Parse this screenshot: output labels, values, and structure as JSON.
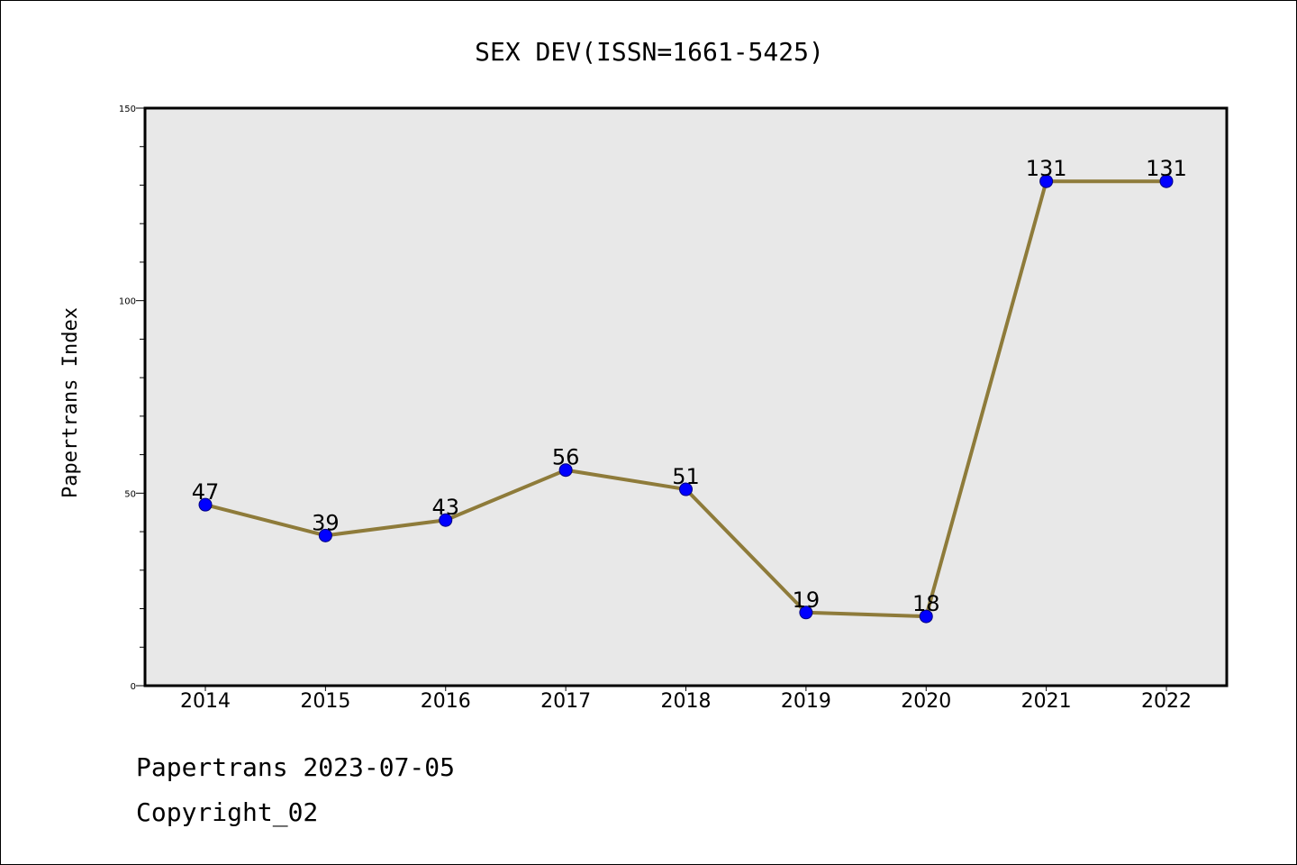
{
  "chart_data": {
    "type": "line",
    "title": "SEX DEV(ISSN=1661-5425)",
    "ylabel": "Papertrans Index",
    "xlabel": "",
    "x": [
      "2014",
      "2015",
      "2016",
      "2017",
      "2018",
      "2019",
      "2020",
      "2021",
      "2022"
    ],
    "series": [
      {
        "values": [
          47,
          39,
          43,
          56,
          51,
          19,
          18,
          131,
          131
        ]
      }
    ],
    "data_labels": [
      "47",
      "39",
      "43",
      "56",
      "51",
      "19",
      "18",
      "131",
      "131"
    ],
    "ylim": [
      0,
      150
    ],
    "yticks": [
      0,
      50,
      100,
      150
    ],
    "ytick_labels": [
      "0",
      "50",
      "100",
      "150"
    ],
    "grid": false,
    "legend": "none",
    "colors": {
      "line": "#8e7b3a",
      "marker": "#0000ff",
      "marker_edge": "#000080",
      "plot_bg": "#e8e8e8"
    }
  },
  "footer": {
    "line1": "Papertrans 2023-07-05",
    "line2": "Copyright_02"
  }
}
